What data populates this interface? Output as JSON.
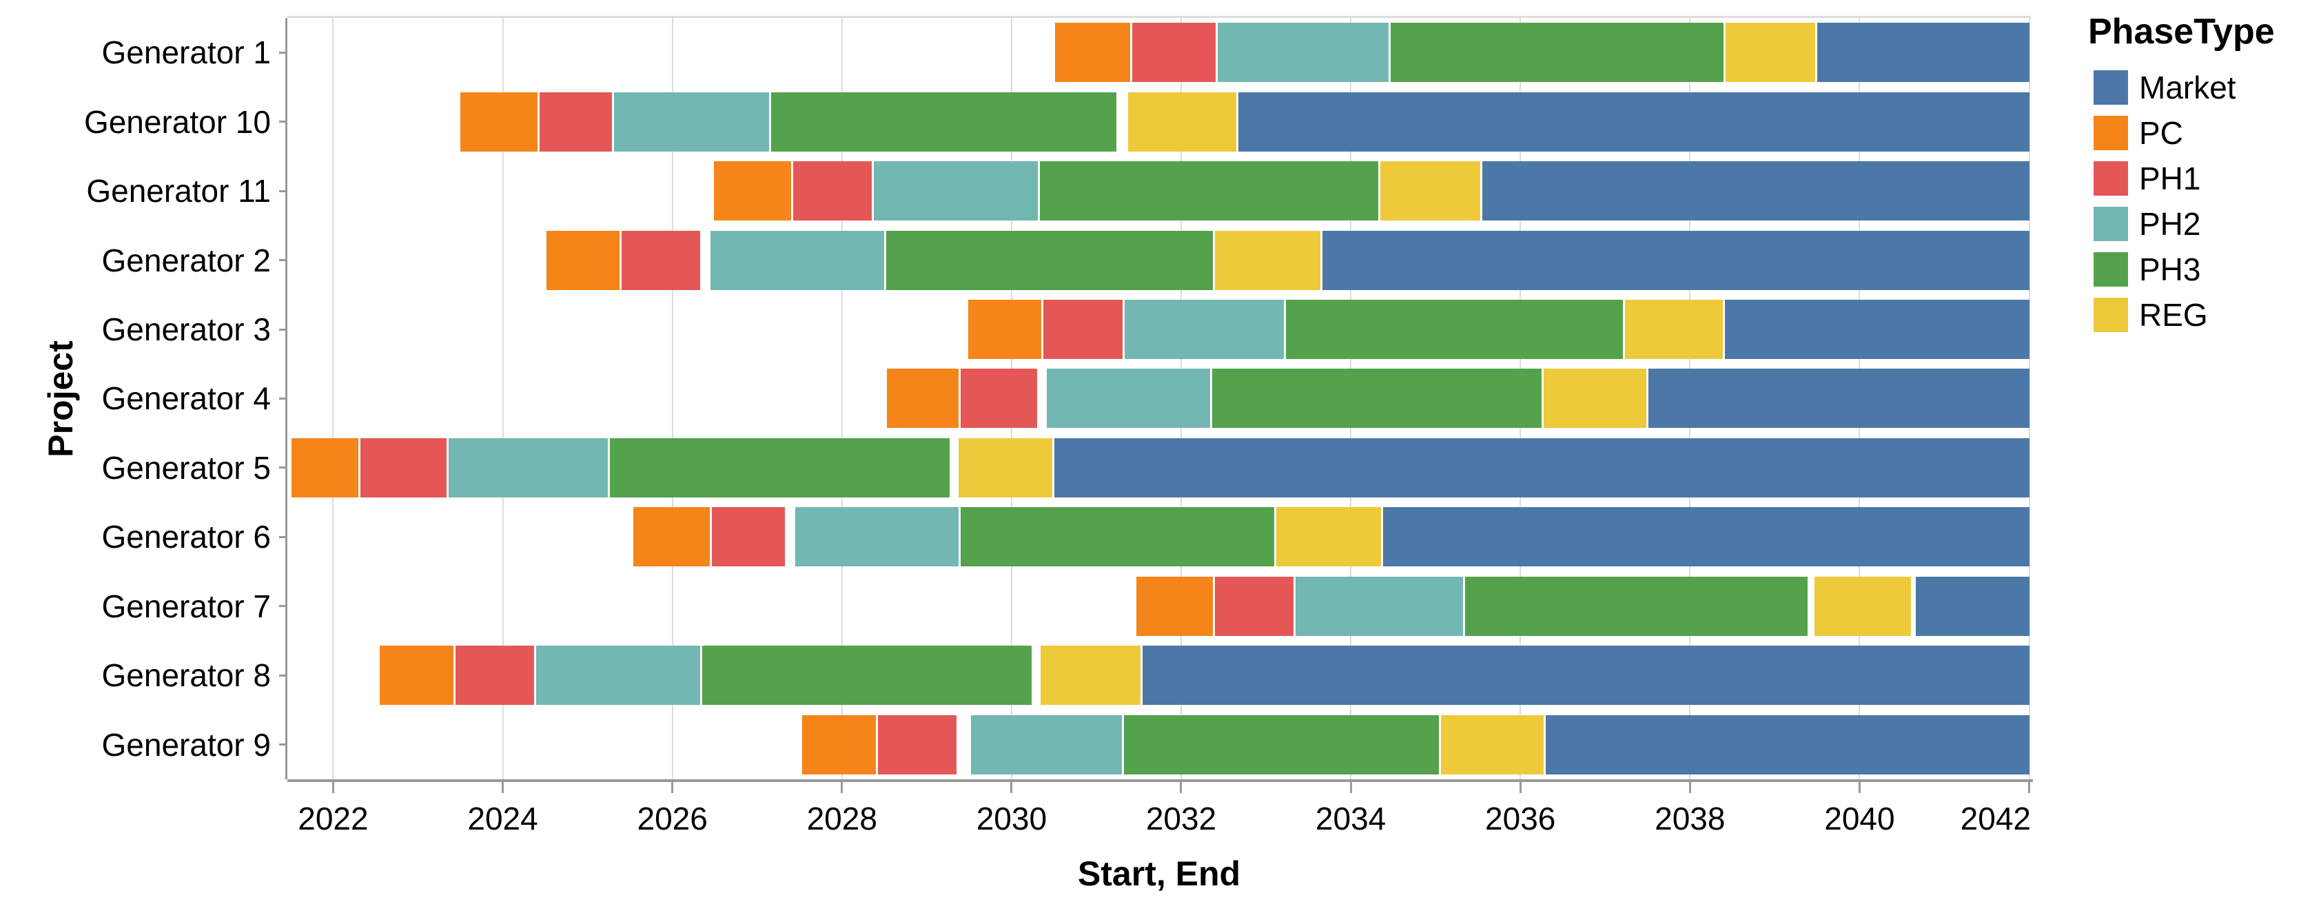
{
  "figure": {
    "x_axis_title": "Start, End",
    "y_axis_title": "Project",
    "legend_title": "PhaseType"
  },
  "colors": {
    "Market": "#4c78a8",
    "PC": "#f58518",
    "PH1": "#e45756",
    "PH2": "#72b7b2",
    "PH3": "#54a24b",
    "REG": "#eeca3b",
    "gridline": "#dddddd",
    "axis": "#999999"
  },
  "chart_data": {
    "type": "bar",
    "subtype": "gantt-stacked-horizontal",
    "title": "",
    "xlabel": "Start, End",
    "ylabel": "Project",
    "legend_title": "PhaseType",
    "legend_position": "top-right",
    "grid": true,
    "x_domain": [
      2021.46,
      2042.02
    ],
    "x_ticks": [
      2022,
      2024,
      2026,
      2028,
      2030,
      2032,
      2034,
      2036,
      2038,
      2040,
      2042
    ],
    "legend": [
      "Market",
      "PC",
      "PH1",
      "PH2",
      "PH3",
      "REG"
    ],
    "categories": [
      "Generator 1",
      "Generator 10",
      "Generator 11",
      "Generator 2",
      "Generator 3",
      "Generator 4",
      "Generator 5",
      "Generator 6",
      "Generator 7",
      "Generator 8",
      "Generator 9"
    ],
    "series": [
      {
        "project": "Generator 1",
        "segments": [
          {
            "phase": "PC",
            "start": 2030.5,
            "end": 2031.41
          },
          {
            "phase": "PH1",
            "start": 2031.41,
            "end": 2032.42
          },
          {
            "phase": "PH2",
            "start": 2032.42,
            "end": 2034.46
          },
          {
            "phase": "PH3",
            "start": 2034.46,
            "end": 2038.41
          },
          {
            "phase": "REG",
            "start": 2038.41,
            "end": 2039.49
          },
          {
            "phase": "Market",
            "start": 2039.49,
            "end": 2042.02
          }
        ]
      },
      {
        "project": "Generator 10",
        "segments": [
          {
            "phase": "PC",
            "start": 2023.49,
            "end": 2024.42
          },
          {
            "phase": "PH1",
            "start": 2024.42,
            "end": 2025.3
          },
          {
            "phase": "PH2",
            "start": 2025.3,
            "end": 2027.15
          },
          {
            "phase": "PH3",
            "start": 2027.15,
            "end": 2031.25
          },
          {
            "phase": "REG",
            "start": 2031.36,
            "end": 2032.66
          },
          {
            "phase": "Market",
            "start": 2032.66,
            "end": 2042.02
          }
        ]
      },
      {
        "project": "Generator 11",
        "segments": [
          {
            "phase": "PC",
            "start": 2026.48,
            "end": 2027.41
          },
          {
            "phase": "PH1",
            "start": 2027.41,
            "end": 2028.36
          },
          {
            "phase": "PH2",
            "start": 2028.36,
            "end": 2030.32
          },
          {
            "phase": "PH3",
            "start": 2030.32,
            "end": 2034.34
          },
          {
            "phase": "REG",
            "start": 2034.34,
            "end": 2035.54
          },
          {
            "phase": "Market",
            "start": 2035.54,
            "end": 2042.02
          }
        ]
      },
      {
        "project": "Generator 2",
        "segments": [
          {
            "phase": "PC",
            "start": 2024.5,
            "end": 2025.39
          },
          {
            "phase": "PH1",
            "start": 2025.39,
            "end": 2026.34
          },
          {
            "phase": "PH2",
            "start": 2026.44,
            "end": 2028.51
          },
          {
            "phase": "PH3",
            "start": 2028.51,
            "end": 2032.39
          },
          {
            "phase": "REG",
            "start": 2032.39,
            "end": 2033.65
          },
          {
            "phase": "Market",
            "start": 2033.65,
            "end": 2042.02
          }
        ]
      },
      {
        "project": "Generator 3",
        "segments": [
          {
            "phase": "PC",
            "start": 2029.48,
            "end": 2030.36
          },
          {
            "phase": "PH1",
            "start": 2030.36,
            "end": 2031.32
          },
          {
            "phase": "PH2",
            "start": 2031.32,
            "end": 2033.22
          },
          {
            "phase": "PH3",
            "start": 2033.22,
            "end": 2037.22
          },
          {
            "phase": "REG",
            "start": 2037.22,
            "end": 2038.4
          },
          {
            "phase": "Market",
            "start": 2038.4,
            "end": 2042.02
          }
        ]
      },
      {
        "project": "Generator 4",
        "segments": [
          {
            "phase": "PC",
            "start": 2028.52,
            "end": 2029.39
          },
          {
            "phase": "PH1",
            "start": 2029.39,
            "end": 2030.31
          },
          {
            "phase": "PH2",
            "start": 2030.4,
            "end": 2032.35
          },
          {
            "phase": "PH3",
            "start": 2032.35,
            "end": 2036.26
          },
          {
            "phase": "REG",
            "start": 2036.26,
            "end": 2037.5
          },
          {
            "phase": "Market",
            "start": 2037.5,
            "end": 2042.02
          }
        ]
      },
      {
        "project": "Generator 5",
        "segments": [
          {
            "phase": "PC",
            "start": 2021.5,
            "end": 2022.31
          },
          {
            "phase": "PH1",
            "start": 2022.31,
            "end": 2023.35
          },
          {
            "phase": "PH2",
            "start": 2023.35,
            "end": 2025.25
          },
          {
            "phase": "PH3",
            "start": 2025.25,
            "end": 2029.28
          },
          {
            "phase": "REG",
            "start": 2029.36,
            "end": 2030.49
          },
          {
            "phase": "Market",
            "start": 2030.49,
            "end": 2042.02
          }
        ]
      },
      {
        "project": "Generator 6",
        "segments": [
          {
            "phase": "PC",
            "start": 2025.53,
            "end": 2026.45
          },
          {
            "phase": "PH1",
            "start": 2026.45,
            "end": 2027.34
          },
          {
            "phase": "PH2",
            "start": 2027.44,
            "end": 2029.39
          },
          {
            "phase": "PH3",
            "start": 2029.39,
            "end": 2033.11
          },
          {
            "phase": "REG",
            "start": 2033.11,
            "end": 2034.37
          },
          {
            "phase": "Market",
            "start": 2034.37,
            "end": 2042.02
          }
        ]
      },
      {
        "project": "Generator 7",
        "segments": [
          {
            "phase": "PC",
            "start": 2031.46,
            "end": 2032.39
          },
          {
            "phase": "PH1",
            "start": 2032.39,
            "end": 2033.34
          },
          {
            "phase": "PH2",
            "start": 2033.34,
            "end": 2035.34
          },
          {
            "phase": "PH3",
            "start": 2035.34,
            "end": 2039.4
          },
          {
            "phase": "REG",
            "start": 2039.46,
            "end": 2040.62
          },
          {
            "phase": "Market",
            "start": 2040.65,
            "end": 2042.02
          }
        ]
      },
      {
        "project": "Generator 8",
        "segments": [
          {
            "phase": "PC",
            "start": 2022.54,
            "end": 2023.43
          },
          {
            "phase": "PH1",
            "start": 2023.43,
            "end": 2024.38
          },
          {
            "phase": "PH2",
            "start": 2024.38,
            "end": 2026.34
          },
          {
            "phase": "PH3",
            "start": 2026.34,
            "end": 2030.25
          },
          {
            "phase": "REG",
            "start": 2030.33,
            "end": 2031.53
          },
          {
            "phase": "Market",
            "start": 2031.53,
            "end": 2042.02
          }
        ]
      },
      {
        "project": "Generator 9",
        "segments": [
          {
            "phase": "PC",
            "start": 2027.52,
            "end": 2028.41
          },
          {
            "phase": "PH1",
            "start": 2028.41,
            "end": 2029.36
          },
          {
            "phase": "PH2",
            "start": 2029.51,
            "end": 2031.31
          },
          {
            "phase": "PH3",
            "start": 2031.31,
            "end": 2035.05
          },
          {
            "phase": "REG",
            "start": 2035.05,
            "end": 2036.29
          },
          {
            "phase": "Market",
            "start": 2036.29,
            "end": 2042.02
          }
        ]
      }
    ]
  }
}
